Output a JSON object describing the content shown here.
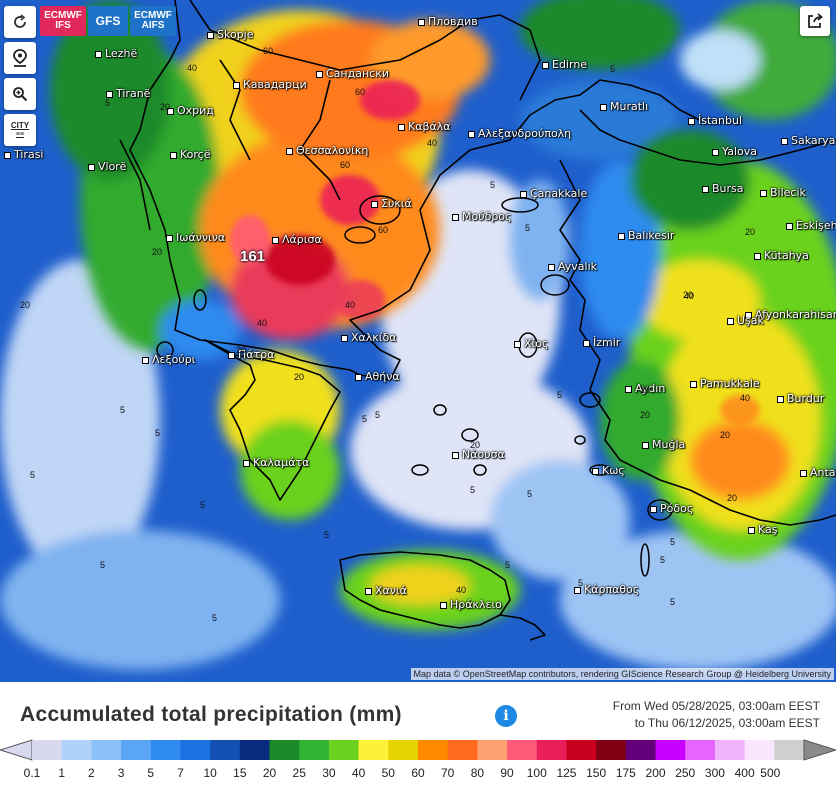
{
  "models": [
    {
      "label_l1": "ECMWF",
      "label_l2": "IFS",
      "color": "#e0285a"
    },
    {
      "label_l1": "GFS",
      "label_l2": "",
      "color": "#1e73c8"
    },
    {
      "label_l1": "ECMWF",
      "label_l2": "AIFS",
      "color": "#1e73c8"
    }
  ],
  "controls": {
    "refresh": "refresh-icon",
    "location": "location-pin-icon",
    "zoom": "zoom-icon",
    "city_label": "CITY"
  },
  "map": {
    "max_value": "161",
    "cities": [
      {
        "name": "Skopje"
      },
      {
        "name": "Пловдив"
      },
      {
        "name": "Lezhë"
      },
      {
        "name": "Кавадарци"
      },
      {
        "name": "Сандански"
      },
      {
        "name": "Edirne"
      },
      {
        "name": "Tiranë"
      },
      {
        "name": "Охрид"
      },
      {
        "name": "Muratlı"
      },
      {
        "name": "İstanbul"
      },
      {
        "name": "Καβάλα"
      },
      {
        "name": "Αλεξανδρούπολη"
      },
      {
        "name": "Θεσσαλονίκη"
      },
      {
        "name": "Sakarya"
      },
      {
        "name": "Yalova"
      },
      {
        "name": "Korçë"
      },
      {
        "name": "Vlorë"
      },
      {
        "name": "Bursa"
      },
      {
        "name": "Bilecik"
      },
      {
        "name": "Çanakkale"
      },
      {
        "name": "Συκιά"
      },
      {
        "name": "Μούδρος"
      },
      {
        "name": "Balıkesir"
      },
      {
        "name": "Eskişehir"
      },
      {
        "name": "Ιωάννινα"
      },
      {
        "name": "Λάρισα"
      },
      {
        "name": "Kütahya"
      },
      {
        "name": "Ayvalık"
      },
      {
        "name": "Afyonkarahisar"
      },
      {
        "name": "Uşak"
      },
      {
        "name": "Χαλκίδα"
      },
      {
        "name": "Χίος"
      },
      {
        "name": "İzmir"
      },
      {
        "name": "Λεξούρι"
      },
      {
        "name": "Πάτρα"
      },
      {
        "name": "Αθήνα"
      },
      {
        "name": "Pamukkale"
      },
      {
        "name": "Aydın"
      },
      {
        "name": "Burdur"
      },
      {
        "name": "Καλαμάτα"
      },
      {
        "name": "Νάουσα"
      },
      {
        "name": "Muğla"
      },
      {
        "name": "Κως"
      },
      {
        "name": "Antalya"
      },
      {
        "name": "Ρόδος"
      },
      {
        "name": "Kaş"
      },
      {
        "name": "Χανιά"
      },
      {
        "name": "Ηράκλειο"
      },
      {
        "name": "Κάρπαθος"
      },
      {
        "name": "Tirasi"
      }
    ],
    "isolines": [
      "20",
      "40",
      "60",
      "60",
      "40",
      "60",
      "60",
      "20",
      "20",
      "40",
      "20",
      "5",
      "5",
      "5",
      "5",
      "5",
      "5",
      "20",
      "40",
      "20",
      "5",
      "5",
      "5",
      "5",
      "5",
      "5",
      "20",
      "20",
      "20",
      "40",
      "20",
      "40",
      "5",
      "5",
      "5",
      "5",
      "5",
      "5",
      "20",
      "40",
      "5",
      "5",
      "5",
      "20"
    ],
    "attribution": "Map data © OpenStreetMap contributors, rendering GIScience Research Group @ Heidelberg University"
  },
  "legend": {
    "title": "Accumulated total precipitation (mm)",
    "period_from": "From Wed 05/28/2025, 03:00am EEST",
    "period_to": "to Thu 06/12/2025, 03:00am EEST",
    "ticks": [
      "0.1",
      "1",
      "2",
      "3",
      "5",
      "7",
      "10",
      "15",
      "20",
      "25",
      "30",
      "40",
      "50",
      "60",
      "70",
      "80",
      "90",
      "100",
      "125",
      "150",
      "175",
      "200",
      "250",
      "300",
      "400",
      "500"
    ],
    "colors": [
      "#d8d8ee",
      "#aed2f8",
      "#8cc0f8",
      "#5aa6f4",
      "#2f8bef",
      "#1a73e0",
      "#1250b4",
      "#0a2a80",
      "#1c8a2a",
      "#32b432",
      "#6ad21e",
      "#fff03a",
      "#e6d200",
      "#ff8a00",
      "#ff6a1e",
      "#ffa070",
      "#ff5a78",
      "#ea1e5a",
      "#c8001e",
      "#800014",
      "#64007a",
      "#c800ff",
      "#e664ff",
      "#f0b4ff",
      "#fae6ff",
      "#cfcfcf"
    ]
  }
}
